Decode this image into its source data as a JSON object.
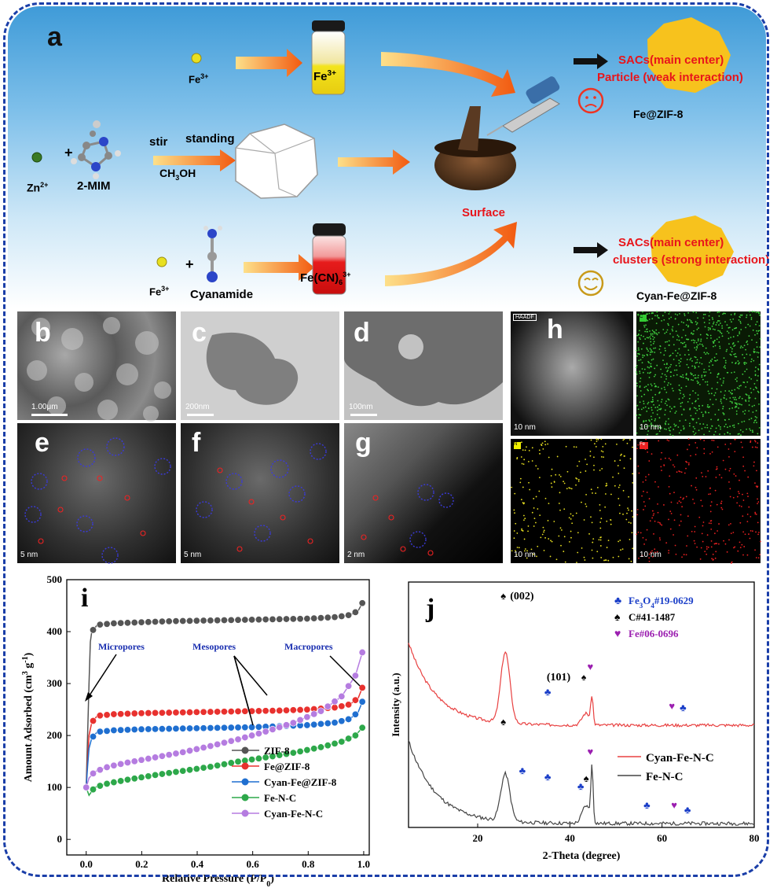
{
  "panel_a": {
    "letter": "a",
    "fe_ion": "Fe",
    "fe_charge": "3+",
    "zn_ion": "Zn",
    "zn_charge": "2+",
    "mim": "2-MIM",
    "stir": "stir",
    "standing": "standing",
    "solvent": "CH",
    "solvent_sub": "3",
    "solvent_end": "OH",
    "surface": "Surface",
    "sacs_main": "SACs(main center)",
    "particle": "Particle (weak interaction)",
    "fe_zif": "Fe@ZIF-8",
    "cyanamide": "Cyanamide",
    "fecn": "Fe(CN)",
    "fecn_sub": "6",
    "fecn_sup": "3+",
    "clusters": "clusters (strong interaction)",
    "cyan_fe_zif": "Cyan-Fe@ZIF-8",
    "plus": "+"
  },
  "micrographs": {
    "b": {
      "letter": "b",
      "scale": "1.00μm"
    },
    "c": {
      "letter": "c",
      "scale": "200nm"
    },
    "d": {
      "letter": "d",
      "scale": "100nm"
    },
    "e": {
      "letter": "e",
      "scale": "5 nm"
    },
    "f": {
      "letter": "f",
      "scale": "5 nm"
    },
    "g": {
      "letter": "g",
      "scale": "2 nm"
    },
    "h": {
      "letter": "h",
      "tag_haadf": "HAADF",
      "tag_c": "C",
      "tag_n": "N",
      "tag_fe": "Fe",
      "scale": "10 nm"
    }
  },
  "colors": {
    "zif8": "#555555",
    "fezif": "#e8312e",
    "cyanzif": "#1f6fd0",
    "fenc": "#2da84a",
    "cyanfenc": "#b57ce0",
    "clubs": "#1a3ec8",
    "heart": "#9b1fb0",
    "arrow_orange": "#f07a1c"
  },
  "chart_data": [
    {
      "panel": "i",
      "type": "line",
      "xlabel": "Relative Pressure (P/P",
      "xlabel_sub": "0",
      "xlabel_end": ")",
      "ylabel": "Amount Adsorbed (cm",
      "ylabel_sup": "3",
      "ylabel_mid": " g",
      "ylabel_sup2": "-1",
      "ylabel_end": ")",
      "xlim": [
        -0.07,
        1.02
      ],
      "ylim": [
        -30,
        500
      ],
      "xticks": [
        "0.0",
        "0.2",
        "0.4",
        "0.6",
        "0.8",
        "1.0"
      ],
      "yticks": [
        "0",
        "100",
        "200",
        "300",
        "400",
        "500"
      ],
      "annotations": [
        "Micropores",
        "Mesopores",
        "Macropores"
      ],
      "series": [
        {
          "name": "ZIF-8",
          "adsorption": [
            [
              0,
              100
            ],
            [
              0.005,
              200
            ],
            [
              0.01,
              300
            ],
            [
              0.015,
              380
            ],
            [
              0.02,
              400
            ],
            [
              0.04,
              413
            ],
            [
              0.1,
              416
            ],
            [
              0.2,
              418
            ],
            [
              0.3,
              420
            ],
            [
              0.4,
              421
            ],
            [
              0.5,
              422
            ],
            [
              0.6,
              423
            ],
            [
              0.7,
              424
            ],
            [
              0.8,
              425
            ],
            [
              0.9,
              428
            ],
            [
              0.95,
              432
            ],
            [
              0.98,
              440
            ],
            [
              0.995,
              455
            ]
          ]
        },
        {
          "name": "Fe@ZIF-8",
          "adsorption": [
            [
              0,
              100
            ],
            [
              0.005,
              150
            ],
            [
              0.01,
              200
            ],
            [
              0.02,
              225
            ],
            [
              0.04,
              238
            ],
            [
              0.1,
              241
            ],
            [
              0.2,
              243
            ],
            [
              0.3,
              244
            ],
            [
              0.4,
              245
            ],
            [
              0.5,
              246
            ],
            [
              0.6,
              247
            ],
            [
              0.7,
              248
            ],
            [
              0.8,
              250
            ],
            [
              0.9,
              254
            ],
            [
              0.95,
              260
            ],
            [
              0.98,
              272
            ],
            [
              0.995,
              292
            ]
          ]
        },
        {
          "name": "Cyan-Fe@ZIF-8",
          "adsorption": [
            [
              0,
              100
            ],
            [
              0.005,
              140
            ],
            [
              0.01,
              175
            ],
            [
              0.02,
              195
            ],
            [
              0.04,
              207
            ],
            [
              0.1,
              210
            ],
            [
              0.2,
              212
            ],
            [
              0.3,
              213
            ],
            [
              0.4,
              214
            ],
            [
              0.5,
              215
            ],
            [
              0.6,
              216
            ],
            [
              0.7,
              218
            ],
            [
              0.8,
              220
            ],
            [
              0.9,
              225
            ],
            [
              0.95,
              232
            ],
            [
              0.98,
              245
            ],
            [
              0.995,
              265
            ]
          ]
        },
        {
          "name": "Fe-N-C",
          "adsorption": [
            [
              0,
              100
            ],
            [
              0.01,
              85
            ],
            [
              0.03,
              100
            ],
            [
              0.08,
              108
            ],
            [
              0.15,
              115
            ],
            [
              0.25,
              124
            ],
            [
              0.35,
              132
            ],
            [
              0.45,
              140
            ],
            [
              0.55,
              150
            ],
            [
              0.65,
              158
            ],
            [
              0.75,
              167
            ],
            [
              0.85,
              178
            ],
            [
              0.92,
              188
            ],
            [
              0.97,
              200
            ],
            [
              0.995,
              215
            ]
          ]
        },
        {
          "name": "Cyan-Fe-N-C",
          "adsorption": [
            [
              0,
              100
            ],
            [
              0.01,
              118
            ],
            [
              0.03,
              130
            ],
            [
              0.08,
              140
            ],
            [
              0.15,
              148
            ],
            [
              0.25,
              158
            ],
            [
              0.35,
              168
            ],
            [
              0.45,
              180
            ],
            [
              0.55,
              193
            ],
            [
              0.65,
              208
            ],
            [
              0.75,
              225
            ],
            [
              0.85,
              248
            ],
            [
              0.92,
              275
            ],
            [
              0.97,
              315
            ],
            [
              0.995,
              360
            ]
          ]
        }
      ]
    },
    {
      "panel": "j",
      "type": "line",
      "xlabel": "2-Theta (degree)",
      "ylabel": "Intensity (a.u.)",
      "xlim": [
        5,
        80
      ],
      "xticks": [
        "20",
        "40",
        "60",
        "80"
      ],
      "series": [
        {
          "name": "Cyan-Fe-N-C"
        },
        {
          "name": "Fe-N-C"
        }
      ],
      "legend_phases": [
        {
          "symbol": "♣",
          "label": "Fe",
          "sub": "3",
          "mid": "O",
          "sub2": "4",
          "end": "#19-0629"
        },
        {
          "symbol": "♠",
          "label": "C#41-1487"
        },
        {
          "symbol": "♥",
          "label": "Fe#06-0696"
        }
      ],
      "peak_labels": [
        "(002)",
        "(101)"
      ]
    }
  ]
}
